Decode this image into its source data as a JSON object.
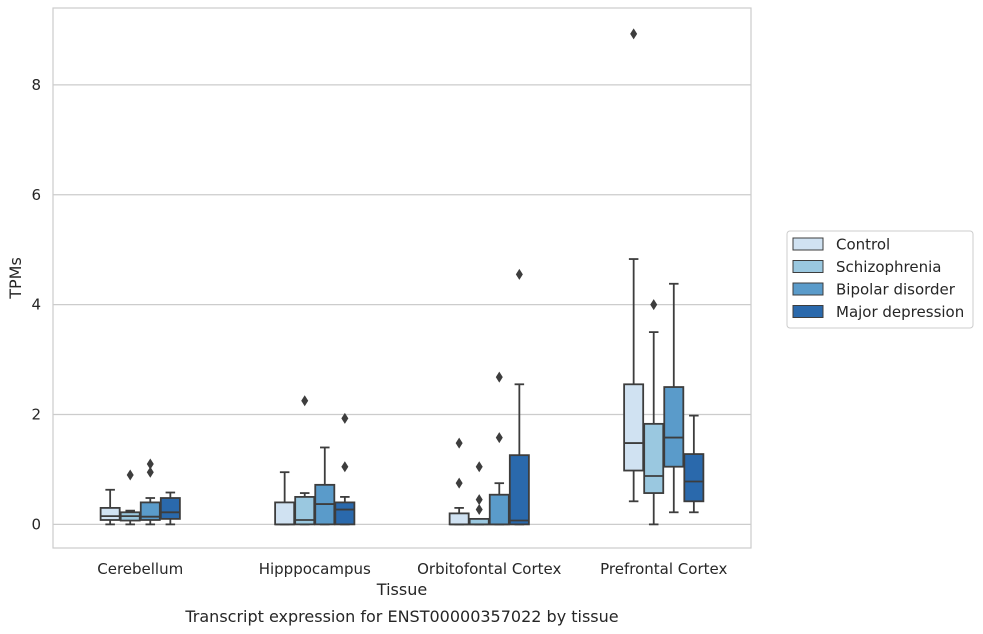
{
  "caption": "Transcript expression for ENST00000357022 by tissue",
  "chart_data": {
    "type": "box",
    "xlabel": "Tissue",
    "ylabel": "TPMs",
    "ylim": [
      -0.43,
      9.4
    ],
    "yticks": [
      0,
      2,
      4,
      6,
      8
    ],
    "grid": "horizontal",
    "legend_position": "right",
    "categories": [
      "Cerebellum",
      "Hipppocampus",
      "Orbitofontal Cortex",
      "Prefrontal Cortex"
    ],
    "series": [
      {
        "name": "Control",
        "color": "#d0e2f2",
        "boxes": [
          {
            "whisker_low": 0.0,
            "q1": 0.08,
            "median": 0.15,
            "q3": 0.3,
            "whisker_high": 0.63,
            "outliers": []
          },
          {
            "whisker_low": 0.0,
            "q1": 0.0,
            "median": 0.0,
            "q3": 0.4,
            "whisker_high": 0.95,
            "outliers": []
          },
          {
            "whisker_low": 0.0,
            "q1": 0.0,
            "median": 0.0,
            "q3": 0.2,
            "whisker_high": 0.3,
            "outliers": [
              0.75,
              1.48
            ]
          },
          {
            "whisker_low": 0.42,
            "q1": 0.98,
            "median": 1.48,
            "q3": 2.55,
            "whisker_high": 4.83,
            "outliers": [
              8.93
            ]
          }
        ]
      },
      {
        "name": "Schizophrenia",
        "color": "#9ac8e0",
        "boxes": [
          {
            "whisker_low": 0.0,
            "q1": 0.07,
            "median": 0.15,
            "q3": 0.22,
            "whisker_high": 0.25,
            "outliers": [
              0.9
            ]
          },
          {
            "whisker_low": 0.0,
            "q1": 0.0,
            "median": 0.08,
            "q3": 0.5,
            "whisker_high": 0.57,
            "outliers": [
              2.25
            ]
          },
          {
            "whisker_low": 0.0,
            "q1": 0.0,
            "median": 0.0,
            "q3": 0.1,
            "whisker_high": 0.1,
            "outliers": [
              0.27,
              0.45,
              1.05
            ]
          },
          {
            "whisker_low": 0.0,
            "q1": 0.57,
            "median": 0.88,
            "q3": 1.83,
            "whisker_high": 3.5,
            "outliers": [
              4.0
            ]
          }
        ]
      },
      {
        "name": "Bipolar disorder",
        "color": "#5a9bca",
        "boxes": [
          {
            "whisker_low": 0.0,
            "q1": 0.08,
            "median": 0.14,
            "q3": 0.4,
            "whisker_high": 0.48,
            "outliers": [
              0.95,
              1.1
            ]
          },
          {
            "whisker_low": 0.0,
            "q1": 0.0,
            "median": 0.37,
            "q3": 0.72,
            "whisker_high": 1.4,
            "outliers": []
          },
          {
            "whisker_low": 0.0,
            "q1": 0.0,
            "median": 0.0,
            "q3": 0.54,
            "whisker_high": 0.75,
            "outliers": [
              1.58,
              2.68
            ]
          },
          {
            "whisker_low": 0.22,
            "q1": 1.05,
            "median": 1.58,
            "q3": 2.5,
            "whisker_high": 4.38,
            "outliers": []
          }
        ]
      },
      {
        "name": "Major depression",
        "color": "#2a69ac",
        "boxes": [
          {
            "whisker_low": 0.0,
            "q1": 0.1,
            "median": 0.22,
            "q3": 0.48,
            "whisker_high": 0.58,
            "outliers": []
          },
          {
            "whisker_low": 0.0,
            "q1": 0.0,
            "median": 0.27,
            "q3": 0.4,
            "whisker_high": 0.5,
            "outliers": [
              1.05,
              1.93
            ]
          },
          {
            "whisker_low": 0.0,
            "q1": 0.0,
            "median": 0.07,
            "q3": 1.26,
            "whisker_high": 2.55,
            "outliers": [
              4.55
            ]
          },
          {
            "whisker_low": 0.22,
            "q1": 0.42,
            "median": 0.78,
            "q3": 1.28,
            "whisker_high": 1.98,
            "outliers": []
          }
        ]
      }
    ]
  }
}
